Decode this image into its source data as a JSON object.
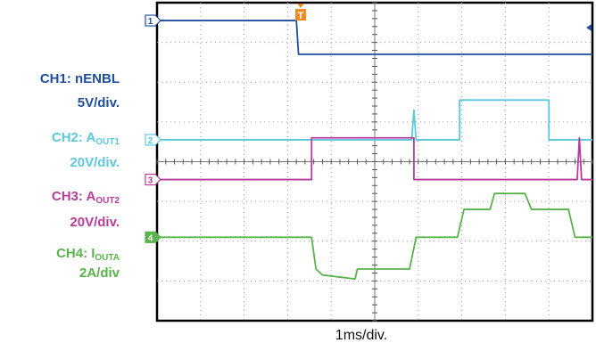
{
  "channels": [
    {
      "id": "1",
      "name": "CH1: nENBL",
      "scale": "5V/div.",
      "color": "#1f4e9e"
    },
    {
      "id": "2",
      "name_main": "CH2: A",
      "name_sub": "OUT1",
      "scale": "20V/div.",
      "color": "#5bc8dc"
    },
    {
      "id": "3",
      "name_main": "CH3: A",
      "name_sub": "OUT2",
      "scale": "20V/div.",
      "color": "#b83c9a"
    },
    {
      "id": "4",
      "name_main": "CH4: I",
      "name_sub": "OUTA",
      "scale": "2A/div",
      "color": "#5ab34a"
    }
  ],
  "trigger_marker": "T",
  "chart_data": {
    "type": "line",
    "xlabel": "1ms/div.",
    "divisions_x": 10,
    "divisions_y": 8,
    "grid": true,
    "x_unit": "div",
    "y_unit": "div",
    "series": [
      {
        "name": "CH1: nENBL",
        "points": [
          [
            0,
            7.55
          ],
          [
            3.2,
            7.55
          ],
          [
            3.25,
            6.7
          ],
          [
            10,
            6.7
          ]
        ]
      },
      {
        "name": "CH2: AOUT1",
        "points": [
          [
            0,
            4.55
          ],
          [
            5.85,
            4.55
          ],
          [
            5.9,
            5.3
          ],
          [
            5.95,
            4.55
          ],
          [
            6.95,
            4.55
          ],
          [
            6.95,
            5.55
          ],
          [
            9.0,
            5.55
          ],
          [
            9.0,
            4.55
          ],
          [
            10,
            4.55
          ]
        ]
      },
      {
        "name": "CH3: AOUT2",
        "points": [
          [
            0,
            3.55
          ],
          [
            3.55,
            3.55
          ],
          [
            3.55,
            4.6
          ],
          [
            5.9,
            4.6
          ],
          [
            5.9,
            3.55
          ],
          [
            9.65,
            3.55
          ],
          [
            9.7,
            4.6
          ],
          [
            9.75,
            3.55
          ],
          [
            10,
            3.55
          ]
        ]
      },
      {
        "name": "CH4: IOUTA",
        "points": [
          [
            0,
            2.1
          ],
          [
            3.55,
            2.1
          ],
          [
            3.65,
            1.3
          ],
          [
            3.8,
            1.15
          ],
          [
            4.55,
            1.05
          ],
          [
            4.6,
            1.3
          ],
          [
            5.8,
            1.3
          ],
          [
            5.95,
            2.1
          ],
          [
            6.9,
            2.1
          ],
          [
            7.05,
            2.8
          ],
          [
            7.65,
            2.8
          ],
          [
            7.75,
            3.2
          ],
          [
            8.45,
            3.2
          ],
          [
            8.6,
            2.8
          ],
          [
            9.45,
            2.8
          ],
          [
            9.6,
            2.1
          ],
          [
            10,
            2.1
          ]
        ]
      }
    ]
  }
}
